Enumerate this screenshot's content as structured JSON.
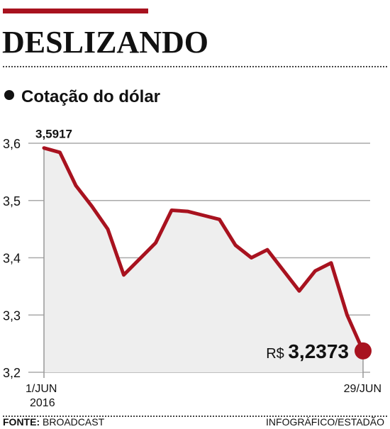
{
  "header": {
    "headline": "DESLIZANDO",
    "subtitle": "Cotação do dólar"
  },
  "footer": {
    "source_label": "FONTE:",
    "source_value": "BROADCAST",
    "credit": "INFOGRÁFICO/ESTADÃO"
  },
  "colors": {
    "accent": "#a8121f",
    "area_fill": "#eeeeee",
    "grid": "#aaaaaa"
  },
  "chart_data": {
    "type": "line",
    "title": "Cotação do dólar",
    "xlabel": "",
    "ylabel": "",
    "ylim": [
      3.2,
      3.6
    ],
    "y_ticks": [
      "3,6",
      "3,5",
      "3,4",
      "3,3",
      "3,2"
    ],
    "y_tick_values": [
      3.6,
      3.5,
      3.4,
      3.3,
      3.2
    ],
    "x_labels": [
      {
        "text": "1/JUN",
        "sub": "2016",
        "index": 0
      },
      {
        "text": "29/JUN",
        "sub": "",
        "index": 20
      }
    ],
    "series": [
      {
        "values": [
          3.5917,
          3.584,
          3.526,
          3.49,
          3.45,
          3.37,
          3.398,
          3.426,
          3.483,
          3.481,
          3.474,
          3.467,
          3.422,
          3.4,
          3.414,
          3.378,
          3.342,
          3.377,
          3.391,
          3.3,
          3.2373
        ]
      }
    ],
    "annotations": {
      "start": {
        "text": "3,5917",
        "index": 0
      },
      "end": {
        "prefix": "R$",
        "value": "3,2373",
        "index": 20
      }
    },
    "grid": true
  }
}
